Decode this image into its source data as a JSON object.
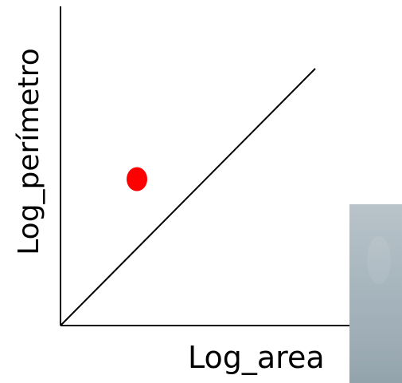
{
  "chart_data": {
    "type": "scatter",
    "title": "",
    "xlabel": "Log_area",
    "ylabel": "Log_perímetro",
    "xlim": [
      0,
      1
    ],
    "ylim": [
      0,
      1
    ],
    "grid": false,
    "legend": "none",
    "points": [
      {
        "x": 0.3,
        "y": 0.57,
        "color": "#ff0000"
      }
    ],
    "reference_line": {
      "x": [
        0,
        1
      ],
      "y": [
        0,
        1
      ],
      "color": "#000000"
    }
  },
  "colors": {
    "point": "#ff0000",
    "axis": "#000000",
    "photo_panel": "#a9b7bf"
  }
}
